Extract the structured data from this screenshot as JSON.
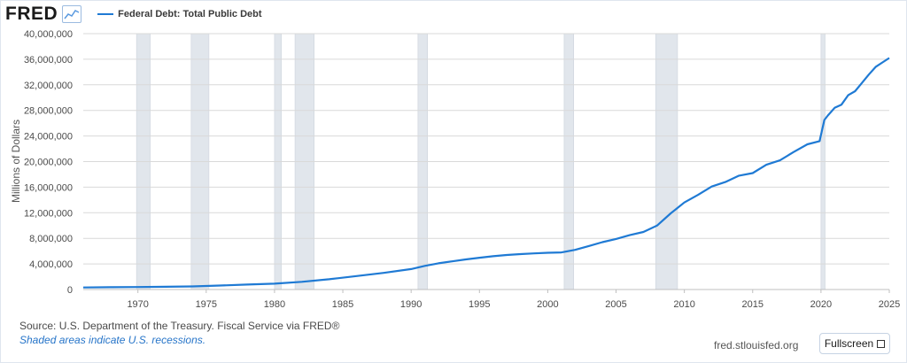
{
  "header": {
    "logo": "FRED",
    "logo_icon": "line-chart-icon",
    "legend_label": "Federal Debt: Total Public Debt"
  },
  "footer": {
    "source": "Source: U.S. Department of the Treasury. Fiscal Service via FRED®",
    "note": "Shaded areas indicate U.S. recessions.",
    "url": "fred.stlouisfed.org",
    "fullscreen_label": "Fullscreen",
    "fullscreen_icon": "expand-icon"
  },
  "colors": {
    "line": "#1f7ad4",
    "recession": "#e1e6ec",
    "grid": "#d9d9d9"
  },
  "chart_data": {
    "type": "line",
    "title": "Federal Debt: Total Public Debt",
    "ylabel": "Millions of Dollars",
    "xlabel": "",
    "xlim": [
      1966,
      2025
    ],
    "ylim": [
      0,
      40000000
    ],
    "x_ticks": [
      "1970",
      "1975",
      "1980",
      "1985",
      "1990",
      "1995",
      "2000",
      "2005",
      "2010",
      "2015",
      "2020",
      "2025"
    ],
    "y_ticks": [
      "0",
      "4,000,000",
      "8,000,000",
      "12,000,000",
      "16,000,000",
      "20,000,000",
      "24,000,000",
      "28,000,000",
      "32,000,000",
      "36,000,000",
      "40,000,000"
    ],
    "grid": true,
    "legend_position": "top-left",
    "recessions": [
      [
        1969.9,
        1970.9
      ],
      [
        1973.9,
        1975.2
      ],
      [
        1980.0,
        1980.5
      ],
      [
        1981.5,
        1982.9
      ],
      [
        1990.5,
        1991.2
      ],
      [
        2001.2,
        2001.9
      ],
      [
        2007.9,
        2009.5
      ],
      [
        2020.0,
        2020.3
      ]
    ],
    "series": [
      {
        "name": "Federal Debt: Total Public Debt",
        "x": [
          1966,
          1968,
          1970,
          1972,
          1974,
          1976,
          1978,
          1980,
          1982,
          1984,
          1986,
          1988,
          1990,
          1991,
          1992,
          1993,
          1994,
          1995,
          1996,
          1997,
          1998,
          1999,
          2000,
          2001,
          2002,
          2003,
          2004,
          2005,
          2006,
          2007,
          2008,
          2009,
          2010,
          2011,
          2012,
          2013,
          2014,
          2015,
          2016,
          2017,
          2018,
          2019,
          2019.9,
          2020.25,
          2020.5,
          2021,
          2021.5,
          2022,
          2022.5,
          2023,
          2023.5,
          2024,
          2024.5,
          2025
        ],
        "y": [
          320000,
          360000,
          390000,
          430000,
          480000,
          620000,
          780000,
          910000,
          1200000,
          1600000,
          2100000,
          2600000,
          3200000,
          3700000,
          4100000,
          4400000,
          4700000,
          4970000,
          5200000,
          5400000,
          5530000,
          5650000,
          5750000,
          5800000,
          6200000,
          6800000,
          7400000,
          7900000,
          8500000,
          9000000,
          10000000,
          11900000,
          13600000,
          14800000,
          16100000,
          16800000,
          17800000,
          18200000,
          19500000,
          20200000,
          21500000,
          22700000,
          23200000,
          26500000,
          27200000,
          28400000,
          28900000,
          30400000,
          31000000,
          32300000,
          33600000,
          34800000,
          35500000,
          36200000
        ]
      }
    ]
  }
}
